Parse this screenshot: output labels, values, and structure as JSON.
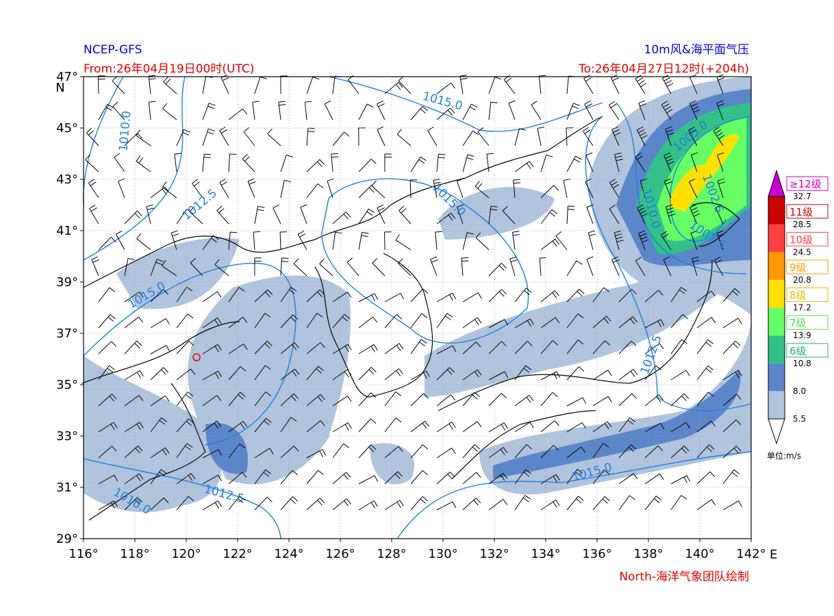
{
  "header": {
    "source": "NCEP-GFS",
    "title": "10m风&海平面气压",
    "from": "From:26年04月19日00时(UTC)",
    "to": "To:26年04月27日12时(+204h)"
  },
  "map": {
    "lat_ticks": [
      "47°",
      "45°",
      "43°",
      "41°",
      "39°",
      "37°",
      "35°",
      "33°",
      "31°",
      "29°"
    ],
    "lat_unit": "N",
    "lon_ticks": [
      "116°",
      "118°",
      "120°",
      "122°",
      "124°",
      "126°",
      "128°",
      "130°",
      "132°",
      "134°",
      "136°",
      "138°",
      "140°",
      "142°"
    ],
    "lon_unit": "E",
    "contour_labels": [
      "1015.0",
      "1010.0",
      "1012.5",
      "1015.0",
      "1015.0",
      "1005.0",
      "1002.5",
      "1010.0",
      "1007.5",
      "1012.5",
      "1015.0",
      "1010.0",
      "1012.5"
    ]
  },
  "colorbar": {
    "levels": [
      "5.5",
      "8.0",
      "10.8",
      "13.9",
      "17.2",
      "20.8",
      "24.5",
      "28.5",
      "32.7"
    ],
    "grades": [
      "≥12级",
      "11级",
      "10级",
      "9级",
      "8级",
      "7级",
      "6级"
    ],
    "unit": "单位:m/s"
  },
  "footer": {
    "credit": "North-海洋气象团队绘制"
  }
}
